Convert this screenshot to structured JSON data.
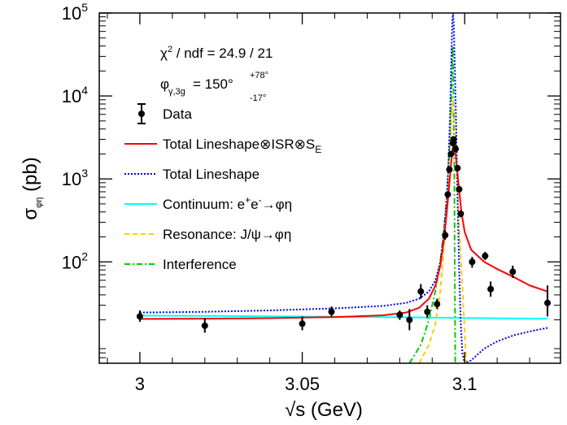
{
  "chart_data": {
    "type": "scatter",
    "xlabel": "√s (GeV)",
    "ylabel": "σ_φη (pb)",
    "xlim": [
      2.9875,
      3.1295
    ],
    "ylim": [
      6,
      100000
    ],
    "y_scale": "log",
    "x_ticks": [
      {
        "value": 3.0,
        "label": "3"
      },
      {
        "value": 3.05,
        "label": "3.05"
      },
      {
        "value": 3.1,
        "label": "3.1"
      }
    ],
    "y_ticks": [
      {
        "value": 100,
        "base": "10",
        "exp": "2"
      },
      {
        "value": 1000,
        "base": "10",
        "exp": "3"
      },
      {
        "value": 10000,
        "base": "10",
        "exp": "4"
      },
      {
        "value": 100000,
        "base": "10",
        "exp": "5"
      }
    ],
    "annotations": {
      "chi2": {
        "prefix": "χ",
        "sup": "2",
        "rest": " / ndf = 24.9 / 21"
      },
      "phase": {
        "symbol": "φ",
        "sub": "γ,3g",
        "eq": " = 150°",
        "sup": "+78°",
        "subval": "-17°"
      }
    },
    "legend": [
      {
        "key": "data",
        "label": "Data",
        "style": "marker",
        "color": "#000000"
      },
      {
        "key": "total_isr",
        "label_main": "Total Lineshape⊗ISR⊗S",
        "label_sub": "E",
        "style": "solid",
        "color": "#ff0000"
      },
      {
        "key": "total",
        "label": "Total Lineshape",
        "style": "dotted",
        "color": "#0000ff"
      },
      {
        "key": "continuum",
        "label_pre": "Continuum: e",
        "sup1": "+",
        "mid": "e",
        "sup2": "-",
        "label_post": "→φη",
        "style": "solid",
        "color": "#00ffff"
      },
      {
        "key": "resonance",
        "label": "Resonance: J/ψ→φη",
        "style": "dashed",
        "color": "#ffcc00"
      },
      {
        "key": "interference",
        "label": "Interference",
        "style": "dashdot",
        "color": "#00cc00"
      }
    ],
    "series": [
      {
        "name": "Data",
        "points": [
          {
            "x": 3.0,
            "y": 22,
            "lo": 19,
            "hi": 26
          },
          {
            "x": 3.02,
            "y": 17,
            "lo": 14,
            "hi": 21
          },
          {
            "x": 3.05,
            "y": 18,
            "lo": 15,
            "hi": 22
          },
          {
            "x": 3.059,
            "y": 25,
            "lo": 22,
            "hi": 29
          },
          {
            "x": 3.08,
            "y": 23,
            "lo": 20,
            "hi": 26
          },
          {
            "x": 3.083,
            "y": 20,
            "lo": 15,
            "hi": 27
          },
          {
            "x": 3.0865,
            "y": 44,
            "lo": 36,
            "hi": 54
          },
          {
            "x": 3.0885,
            "y": 25,
            "lo": 21,
            "hi": 30
          },
          {
            "x": 3.0915,
            "y": 31,
            "lo": 27,
            "hi": 36
          },
          {
            "x": 3.094,
            "y": 210,
            "lo": 185,
            "hi": 240
          },
          {
            "x": 3.0948,
            "y": 650,
            "lo": 590,
            "hi": 710
          },
          {
            "x": 3.0953,
            "y": 1300,
            "lo": 1200,
            "hi": 1400
          },
          {
            "x": 3.0958,
            "y": 2000,
            "lo": 1860,
            "hi": 2140
          },
          {
            "x": 3.0964,
            "y": 2700,
            "lo": 2550,
            "hi": 2850
          },
          {
            "x": 3.0966,
            "y": 3000,
            "lo": 2850,
            "hi": 3150
          },
          {
            "x": 3.0972,
            "y": 2300,
            "lo": 2170,
            "hi": 2430
          },
          {
            "x": 3.0978,
            "y": 1350,
            "lo": 1250,
            "hi": 1450
          },
          {
            "x": 3.0983,
            "y": 750,
            "lo": 690,
            "hi": 810
          },
          {
            "x": 3.0988,
            "y": 380,
            "lo": 345,
            "hi": 415
          },
          {
            "x": 3.1023,
            "y": 100,
            "lo": 85,
            "hi": 115
          },
          {
            "x": 3.1063,
            "y": 118,
            "lo": 105,
            "hi": 132
          },
          {
            "x": 3.108,
            "y": 47,
            "lo": 38,
            "hi": 58
          },
          {
            "x": 3.1148,
            "y": 76,
            "lo": 64,
            "hi": 90
          },
          {
            "x": 3.1255,
            "y": 32,
            "lo": 22,
            "hi": 52
          }
        ]
      },
      {
        "name": "Total Lineshape⊗ISR⊗S_E",
        "points": [
          [
            3.0,
            20.5
          ],
          [
            3.02,
            20.7
          ],
          [
            3.04,
            21
          ],
          [
            3.06,
            21.6
          ],
          [
            3.075,
            22.7
          ],
          [
            3.082,
            24.5
          ],
          [
            3.086,
            28
          ],
          [
            3.089,
            36
          ],
          [
            3.091,
            52
          ],
          [
            3.0925,
            90
          ],
          [
            3.0935,
            170
          ],
          [
            3.0945,
            400
          ],
          [
            3.0952,
            800
          ],
          [
            3.0958,
            1500
          ],
          [
            3.0963,
            2300
          ],
          [
            3.0967,
            2600
          ],
          [
            3.0971,
            2200
          ],
          [
            3.0976,
            1400
          ],
          [
            3.0982,
            800
          ],
          [
            3.099,
            400
          ],
          [
            3.1,
            230
          ],
          [
            3.102,
            140
          ],
          [
            3.106,
            100
          ],
          [
            3.11,
            82
          ],
          [
            3.115,
            66
          ],
          [
            3.12,
            52
          ],
          [
            3.1255,
            44
          ]
        ]
      },
      {
        "name": "Total Lineshape",
        "points": [
          [
            3.0,
            24.5
          ],
          [
            3.02,
            25
          ],
          [
            3.04,
            26
          ],
          [
            3.06,
            27.5
          ],
          [
            3.075,
            29.5
          ],
          [
            3.082,
            32
          ],
          [
            3.086,
            36
          ],
          [
            3.089,
            44
          ],
          [
            3.091,
            60
          ],
          [
            3.0925,
            100
          ],
          [
            3.0935,
            200
          ],
          [
            3.0945,
            600
          ],
          [
            3.095,
            1500
          ],
          [
            3.0955,
            6000
          ],
          [
            3.0958,
            20000
          ],
          [
            3.0962,
            80000
          ],
          [
            3.0964,
            100000
          ],
          [
            3.0966,
            80000
          ],
          [
            3.097,
            20000
          ],
          [
            3.0974,
            4000
          ],
          [
            3.0978,
            600
          ],
          [
            3.0983,
            80
          ],
          [
            3.0988,
            18
          ],
          [
            3.0993,
            8
          ],
          [
            3.1,
            6
          ],
          [
            3.102,
            6.5
          ],
          [
            3.106,
            9
          ],
          [
            3.11,
            11
          ],
          [
            3.115,
            13
          ],
          [
            3.12,
            14.5
          ],
          [
            3.1255,
            16
          ]
        ]
      },
      {
        "name": "Continuum: e⁺e⁻→φη",
        "points": [
          [
            3.0,
            22.5
          ],
          [
            3.03,
            22.2
          ],
          [
            3.06,
            21.8
          ],
          [
            3.09,
            21.3
          ],
          [
            3.11,
            20.9
          ],
          [
            3.1255,
            20.6
          ]
        ]
      },
      {
        "name": "Resonance: J/ψ→φη",
        "points": [
          [
            3.086,
            6
          ],
          [
            3.089,
            10
          ],
          [
            3.091,
            18
          ],
          [
            3.0925,
            45
          ],
          [
            3.0935,
            130
          ],
          [
            3.0945,
            500
          ],
          [
            3.0955,
            2500
          ],
          [
            3.096,
            6000
          ],
          [
            3.0964,
            9000
          ],
          [
            3.0968,
            6000
          ],
          [
            3.0973,
            2500
          ],
          [
            3.098,
            500
          ],
          [
            3.0988,
            110
          ],
          [
            3.0995,
            35
          ],
          [
            3.1005,
            6
          ]
        ]
      },
      {
        "name": "Interference",
        "points": [
          [
            3.083,
            6
          ],
          [
            3.0865,
            10
          ],
          [
            3.089,
            20
          ],
          [
            3.091,
            45
          ],
          [
            3.0925,
            100
          ],
          [
            3.0935,
            220
          ],
          [
            3.0945,
            600
          ],
          [
            3.0955,
            3000
          ],
          [
            3.096,
            15000
          ],
          [
            3.0963,
            40000
          ],
          [
            3.0965,
            15000
          ],
          [
            3.0968,
            1500
          ],
          [
            3.0971,
            6
          ]
        ]
      }
    ]
  }
}
